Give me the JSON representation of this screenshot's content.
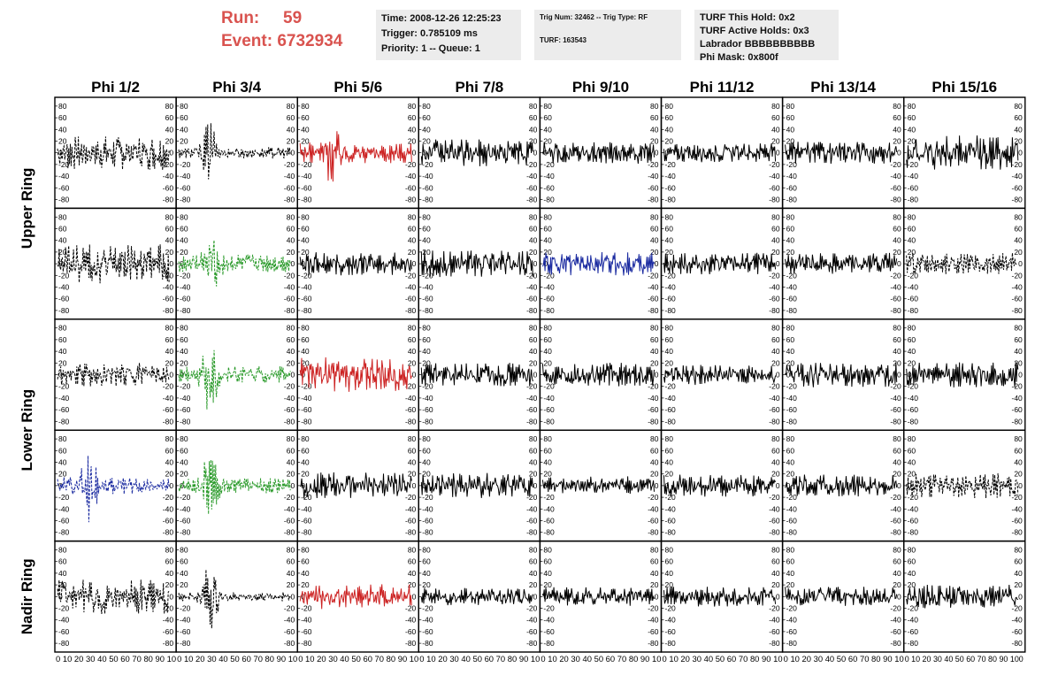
{
  "header": {
    "run_label": "Run:",
    "run_value": "59",
    "event_label": "Event:",
    "event_value": "6732934",
    "time": "Time: 2008-12-26 12:25:23",
    "trigger": "Trigger: 0.785109 ms",
    "priority": "Priority: 1 -- Queue: 1",
    "trig_num": "Trig Num: 32462 -- Trig Type: RF",
    "turf": "TURF: 163543",
    "turf_hold": "TURF This Hold: 0x2",
    "turf_active": "TURF Active Holds: 0x3",
    "labrador": "Labrador BBBBBBBBBB",
    "phi_mask": "Phi Mask: 0x800f"
  },
  "chart_data": {
    "type": "line",
    "columns": [
      "Phi 1/2",
      "Phi 3/4",
      "Phi 5/6",
      "Phi 7/8",
      "Phi 9/10",
      "Phi 11/12",
      "Phi 13/14",
      "Phi 15/16"
    ],
    "rows": [
      "Upper Ring",
      "Lower Ring",
      "Nadir Ring"
    ],
    "ylim": [
      -95,
      95
    ],
    "yticks": [
      -80,
      -60,
      -40,
      -20,
      0,
      20,
      40,
      60,
      80
    ],
    "xlim": [
      0,
      100
    ],
    "xtick_label": "0 10 20 30 40 50 60 70 80 90 10",
    "xtick_label_last": "0 10 20 30 40 50 60 70 80 90 100",
    "colors": {
      "black": "#000000",
      "red": "#cc2222",
      "green": "#2a9a2a",
      "blue": "#1a2aa0"
    },
    "panels": [
      {
        "row": 0,
        "col": 0,
        "color": "black",
        "dashed": true,
        "amp": 22,
        "burst": 0
      },
      {
        "row": 0,
        "col": 1,
        "color": "black",
        "dashed": true,
        "amp": 12,
        "burst": 35
      },
      {
        "row": 0,
        "col": 2,
        "color": "red",
        "dashed": false,
        "amp": 22,
        "burst": 28
      },
      {
        "row": 0,
        "col": 3,
        "color": "black",
        "dashed": false,
        "amp": 17,
        "burst": 0
      },
      {
        "row": 0,
        "col": 4,
        "color": "black",
        "dashed": false,
        "amp": 14,
        "burst": 0
      },
      {
        "row": 0,
        "col": 5,
        "color": "black",
        "dashed": false,
        "amp": 12,
        "burst": 0
      },
      {
        "row": 0,
        "col": 6,
        "color": "black",
        "dashed": false,
        "amp": 14,
        "burst": 0
      },
      {
        "row": 0,
        "col": 7,
        "color": "black",
        "dashed": false,
        "amp": 22,
        "burst": 0
      },
      {
        "row": 1,
        "col": 0,
        "color": "black",
        "dashed": true,
        "amp": 25,
        "burst": 0
      },
      {
        "row": 1,
        "col": 1,
        "color": "green",
        "dashed": true,
        "amp": 20,
        "burst": 35
      },
      {
        "row": 1,
        "col": 2,
        "color": "black",
        "dashed": false,
        "amp": 15,
        "burst": 0
      },
      {
        "row": 1,
        "col": 3,
        "color": "black",
        "dashed": false,
        "amp": 17,
        "burst": 0
      },
      {
        "row": 1,
        "col": 4,
        "color": "blue",
        "dashed": false,
        "amp": 15,
        "burst": 0
      },
      {
        "row": 1,
        "col": 5,
        "color": "black",
        "dashed": false,
        "amp": 14,
        "burst": 0
      },
      {
        "row": 1,
        "col": 6,
        "color": "black",
        "dashed": false,
        "amp": 14,
        "burst": 0
      },
      {
        "row": 1,
        "col": 7,
        "color": "black",
        "dashed": true,
        "amp": 14,
        "burst": 0
      },
      {
        "row": 2,
        "col": 0,
        "color": "black",
        "dashed": true,
        "amp": 15,
        "burst": 0
      },
      {
        "row": 2,
        "col": 1,
        "color": "green",
        "dashed": true,
        "amp": 18,
        "burst": 40
      },
      {
        "row": 2,
        "col": 2,
        "color": "red",
        "dashed": false,
        "amp": 22,
        "burst": 0
      },
      {
        "row": 2,
        "col": 3,
        "color": "black",
        "dashed": false,
        "amp": 15,
        "burst": 0
      },
      {
        "row": 2,
        "col": 4,
        "color": "black",
        "dashed": false,
        "amp": 15,
        "burst": 0
      },
      {
        "row": 2,
        "col": 5,
        "color": "black",
        "dashed": false,
        "amp": 13,
        "burst": 0
      },
      {
        "row": 2,
        "col": 6,
        "color": "black",
        "dashed": false,
        "amp": 16,
        "burst": 0
      },
      {
        "row": 2,
        "col": 7,
        "color": "black",
        "dashed": false,
        "amp": 17,
        "burst": 0
      },
      {
        "row": 3,
        "col": 0,
        "color": "blue",
        "dashed": true,
        "amp": 18,
        "burst": 38
      },
      {
        "row": 3,
        "col": 1,
        "color": "green",
        "dashed": true,
        "amp": 16,
        "burst": 35
      },
      {
        "row": 3,
        "col": 2,
        "color": "black",
        "dashed": false,
        "amp": 17,
        "burst": 0
      },
      {
        "row": 3,
        "col": 3,
        "color": "black",
        "dashed": false,
        "amp": 16,
        "burst": 0
      },
      {
        "row": 3,
        "col": 4,
        "color": "black",
        "dashed": false,
        "amp": 12,
        "burst": 0
      },
      {
        "row": 3,
        "col": 5,
        "color": "black",
        "dashed": false,
        "amp": 14,
        "burst": 0
      },
      {
        "row": 3,
        "col": 6,
        "color": "black",
        "dashed": false,
        "amp": 14,
        "burst": 0
      },
      {
        "row": 3,
        "col": 7,
        "color": "black",
        "dashed": true,
        "amp": 16,
        "burst": 0
      },
      {
        "row": 4,
        "col": 0,
        "color": "black",
        "dashed": true,
        "amp": 22,
        "burst": 0
      },
      {
        "row": 4,
        "col": 1,
        "color": "black",
        "dashed": true,
        "amp": 10,
        "burst": 38
      },
      {
        "row": 4,
        "col": 2,
        "color": "red",
        "dashed": false,
        "amp": 16,
        "burst": 0
      },
      {
        "row": 4,
        "col": 3,
        "color": "black",
        "dashed": false,
        "amp": 11,
        "burst": 0
      },
      {
        "row": 4,
        "col": 4,
        "color": "black",
        "dashed": false,
        "amp": 12,
        "burst": 0
      },
      {
        "row": 4,
        "col": 5,
        "color": "black",
        "dashed": false,
        "amp": 13,
        "burst": 0
      },
      {
        "row": 4,
        "col": 6,
        "color": "black",
        "dashed": false,
        "amp": 13,
        "burst": 0
      },
      {
        "row": 4,
        "col": 7,
        "color": "black",
        "dashed": false,
        "amp": 15,
        "burst": 0
      }
    ]
  }
}
